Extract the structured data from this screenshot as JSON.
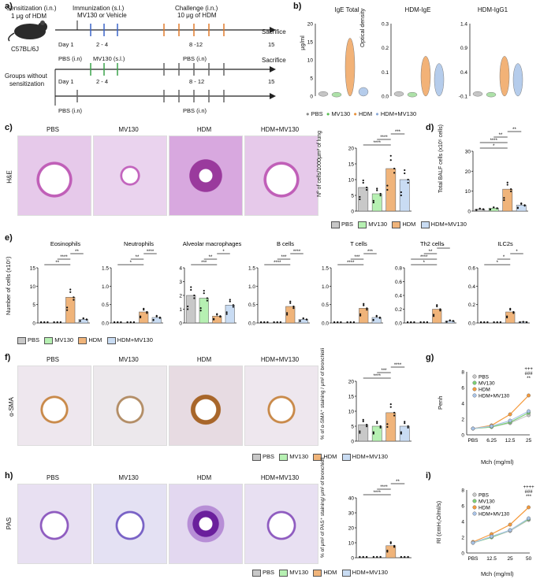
{
  "colors": {
    "pbs": "#c8c8c8",
    "mv130": "#b6f0b2",
    "hdm": "#f0b47a",
    "hdm_mv130": "#c9dcf3",
    "hdm_line": "#f59a3c",
    "mv_line": "#7ccf74",
    "blue_line": "#a9c4e8"
  },
  "panels": {
    "a": "a)",
    "b": "b)",
    "c": "c)",
    "d": "d)",
    "e": "e)",
    "f": "f)",
    "g": "g)",
    "h": "h)",
    "i": "i)"
  },
  "a": {
    "sens": "Sensitization (i.n.)",
    "sens2": "1 μg of HDM",
    "mouse": "C57BL/6J",
    "immun": "Immunization (s.l.)",
    "immun2": "MV130 or Vehicle",
    "chal": "Challenge (i.n.)",
    "chal2": "10 μg of HDM",
    "sac1": "Sacrifice",
    "day1": "Day 1",
    "d24": "2 - 4",
    "d812": "8 -12",
    "d15": "15",
    "pbs_in": "PBS (i.n)",
    "mv_sl": "MV130 (s.l.)",
    "pbs_in2": "PBS (i.n)",
    "sac2": "Sacrifice",
    "groups": "Groups without",
    "groups2": "sensitization",
    "day1b": "Day 1",
    "d24b": "2 - 4",
    "d812b": "8 - 12",
    "d15b": "15",
    "pbs_in3": "PBS (i.n)",
    "pbs_in4": "PBS (i.n)"
  },
  "b": {
    "t1": "IgE Total",
    "t2": "HDM-IgE",
    "t3": "HDM-IgG1",
    "y1": "μg/ml",
    "y2": "Optical density",
    "ticks1": [
      "20",
      "15",
      "10",
      "5",
      "0"
    ],
    "ticks2": [
      "0.3",
      "0.2",
      "0.1",
      "0.0"
    ],
    "ticks3": [
      "1.4",
      "0.9",
      "0.4",
      "-0.1"
    ],
    "legend": [
      "PBS",
      "MV130",
      "HDM",
      "HDM+MV130"
    ]
  },
  "c": {
    "labels": [
      "PBS",
      "MV130",
      "HDM",
      "HDM+MV130"
    ],
    "stain": "H&E",
    "ylabel": "Nº of cells/1000μm² of lung",
    "ticks": [
      "20",
      "15",
      "10",
      "5",
      "0"
    ]
  },
  "d": {
    "ylabel": "Total BALF cells (x10⁵ cells)",
    "ticks": [
      "30",
      "20",
      "10",
      "0"
    ]
  },
  "e": {
    "titles": [
      "Eosinophils",
      "Neutrophils",
      "Alveolar macrophages",
      "B cells",
      "T cells",
      "Th2 cells",
      "ILC2s"
    ],
    "ylabel": "Number of cells (x10⁵)",
    "ticks": [
      [
        "15",
        "10",
        "5",
        "0"
      ],
      [
        "1.5",
        "1.0",
        "0.5",
        "0.0"
      ],
      [
        "4",
        "3",
        "2",
        "1",
        "0"
      ],
      [
        "1.5",
        "1.0",
        "0.5",
        "0.0"
      ],
      [
        "1.5",
        "1.0",
        "0.5",
        "0.0"
      ],
      [
        "0.8",
        "0.6",
        "0.4",
        "0.2",
        "0.0"
      ],
      [
        "0.6",
        "0.4",
        "0.2",
        "0.0"
      ]
    ]
  },
  "f": {
    "labels": [
      "PBS",
      "MV130",
      "HDM",
      "HDM+MV130"
    ],
    "stain": "α-SMA",
    "ylabel": "% of α-SMA⁺ staining / μm² of bronchioli",
    "ticks": [
      "20",
      "15",
      "10",
      "5",
      "0"
    ]
  },
  "g": {
    "ylabel": "Penh",
    "xlabel": "Mch (mg/ml)",
    "x": [
      "PBS",
      "6.25",
      "12.5",
      "25"
    ],
    "ticks": [
      "8",
      "6",
      "4",
      "2",
      "0"
    ],
    "sig": [
      "+++",
      "###",
      "**",
      "#",
      "*"
    ]
  },
  "h": {
    "labels": [
      "PBS",
      "MV130",
      "HDM",
      "HDM+MV130"
    ],
    "stain": "PAS",
    "ylabel": "% of μm² of PAS⁺ staining/ μm² of bronchioli",
    "ticks": [
      "40",
      "30",
      "20",
      "10",
      "0"
    ]
  },
  "i": {
    "ylabel": "Rl (cmH₂O/ml/s)",
    "xlabel": "Mch (mg/ml)",
    "x": [
      "PBS",
      "12.5",
      "25",
      "50"
    ],
    "ticks": [
      "8",
      "6",
      "4",
      "2",
      "0"
    ],
    "sig": [
      "++++",
      "###",
      "***",
      "+",
      "#",
      "*"
    ]
  },
  "legend": [
    "PBS",
    "MV130",
    "HDM",
    "HDM+MV130"
  ],
  "sigs": {
    "s4": "****",
    "s3": "***",
    "s2": "**",
    "s1": "*"
  },
  "chart_data": [
    {
      "type": "bar",
      "title": "Nº of cells/1000μm² of lung",
      "categories": [
        "PBS",
        "MV130",
        "HDM",
        "HDM+MV130"
      ],
      "values": [
        7.5,
        5.5,
        13.5,
        10
      ],
      "ylim": [
        0,
        20
      ]
    },
    {
      "type": "bar",
      "title": "Total BALF cells",
      "categories": [
        "PBS",
        "MV130",
        "HDM",
        "HDM+MV130"
      ],
      "values": [
        1,
        1.5,
        11,
        3
      ],
      "ylim": [
        0,
        30
      ]
    },
    {
      "type": "bar",
      "title": "Eosinophils",
      "categories": [
        "PBS",
        "MV130",
        "HDM",
        "HDM+MV130"
      ],
      "values": [
        0,
        0,
        7,
        1
      ],
      "ylim": [
        0,
        15
      ]
    },
    {
      "type": "bar",
      "title": "Neutrophils",
      "categories": [
        "PBS",
        "MV130",
        "HDM",
        "HDM+MV130"
      ],
      "values": [
        0,
        0,
        0.3,
        0.15
      ],
      "ylim": [
        0,
        1.5
      ]
    },
    {
      "type": "bar",
      "title": "Alveolar macrophages",
      "categories": [
        "PBS",
        "MV130",
        "HDM",
        "HDM+MV130"
      ],
      "values": [
        2,
        1.8,
        0.5,
        1.3
      ],
      "ylim": [
        0,
        4
      ]
    },
    {
      "type": "bar",
      "title": "B cells",
      "categories": [
        "PBS",
        "MV130",
        "HDM",
        "HDM+MV130"
      ],
      "values": [
        0,
        0,
        0.45,
        0.1
      ],
      "ylim": [
        0,
        1.5
      ]
    },
    {
      "type": "bar",
      "title": "T cells",
      "categories": [
        "PBS",
        "MV130",
        "HDM",
        "HDM+MV130"
      ],
      "values": [
        0,
        0,
        0.4,
        0.15
      ],
      "ylim": [
        0,
        1.5
      ]
    },
    {
      "type": "bar",
      "title": "Th2 cells",
      "categories": [
        "PBS",
        "MV130",
        "HDM",
        "HDM+MV130"
      ],
      "values": [
        0,
        0,
        0.2,
        0.03
      ],
      "ylim": [
        0,
        0.8
      ]
    },
    {
      "type": "bar",
      "title": "ILC2s",
      "categories": [
        "PBS",
        "MV130",
        "HDM",
        "HDM+MV130"
      ],
      "values": [
        0,
        0,
        0.12,
        0.01
      ],
      "ylim": [
        0,
        0.6
      ]
    },
    {
      "type": "bar",
      "title": "% α-SMA⁺",
      "categories": [
        "PBS",
        "MV130",
        "HDM",
        "HDM+MV130"
      ],
      "values": [
        5.5,
        5,
        9.5,
        5
      ],
      "ylim": [
        0,
        20
      ]
    },
    {
      "type": "bar",
      "title": "% PAS⁺",
      "categories": [
        "PBS",
        "MV130",
        "HDM",
        "HDM+MV130"
      ],
      "values": [
        0.1,
        0.1,
        8,
        0.2
      ],
      "ylim": [
        0,
        40
      ]
    },
    {
      "type": "line",
      "title": "Penh",
      "x": [
        "PBS",
        "6.25",
        "12.5",
        "25"
      ],
      "series": [
        {
          "name": "PBS",
          "values": [
            0.8,
            1.0,
            1.5,
            2.5
          ]
        },
        {
          "name": "MV130",
          "values": [
            0.8,
            1.0,
            1.6,
            2.8
          ]
        },
        {
          "name": "HDM",
          "values": [
            0.8,
            1.2,
            2.6,
            5.0
          ]
        },
        {
          "name": "HDM+MV130",
          "values": [
            0.8,
            1.1,
            1.8,
            3.0
          ]
        }
      ],
      "ylim": [
        0,
        8
      ]
    },
    {
      "type": "line",
      "title": "Rl",
      "x": [
        "PBS",
        "12.5",
        "25",
        "50"
      ],
      "series": [
        {
          "name": "PBS",
          "values": [
            1.3,
            2.0,
            2.8,
            4.2
          ]
        },
        {
          "name": "MV130",
          "values": [
            1.3,
            2.0,
            2.9,
            4.3
          ]
        },
        {
          "name": "HDM",
          "values": [
            1.4,
            2.4,
            3.6,
            5.8
          ]
        },
        {
          "name": "HDM+MV130",
          "values": [
            1.3,
            2.1,
            2.9,
            4.4
          ]
        }
      ],
      "ylim": [
        0,
        8
      ]
    }
  ]
}
